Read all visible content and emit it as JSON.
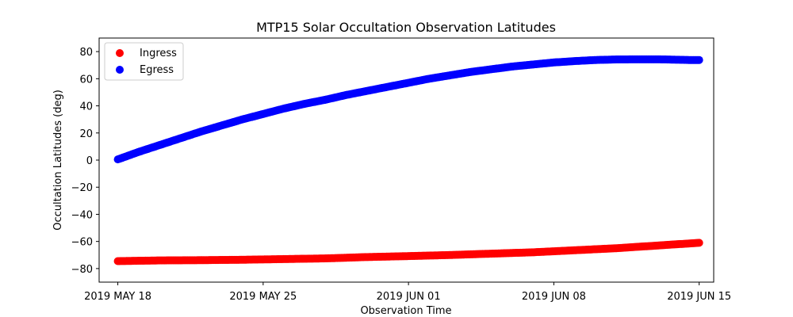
{
  "chart_data": {
    "type": "scatter",
    "title": "MTP15 Solar Occultation Observation Latitudes",
    "xlabel": "Observation Time",
    "ylabel": "Occultation Latitudes (deg)",
    "x_unit": "days since 2019 MAY 18",
    "xlim": [
      -0.9,
      28.7
    ],
    "ylim": [
      -90,
      90
    ],
    "grid": false,
    "legend_position": "top-left",
    "x_ticks": [
      {
        "value": 0,
        "label": "2019 MAY 18"
      },
      {
        "value": 7,
        "label": "2019 MAY 25"
      },
      {
        "value": 14,
        "label": "2019 JUN 01"
      },
      {
        "value": 21,
        "label": "2019 JUN 08"
      },
      {
        "value": 28,
        "label": "2019 JUN 15"
      }
    ],
    "y_ticks": [
      {
        "value": -80,
        "label": "−80"
      },
      {
        "value": -60,
        "label": "−60"
      },
      {
        "value": -40,
        "label": "−40"
      },
      {
        "value": -20,
        "label": "−20"
      },
      {
        "value": 0,
        "label": "0"
      },
      {
        "value": 20,
        "label": "20"
      },
      {
        "value": 40,
        "label": "40"
      },
      {
        "value": 60,
        "label": "60"
      },
      {
        "value": 80,
        "label": "80"
      }
    ],
    "series": [
      {
        "name": "Ingress",
        "color": "#ff0000",
        "x": [
          0,
          2,
          4,
          6,
          8,
          10,
          12,
          14,
          16,
          18,
          20,
          22,
          24,
          26,
          27,
          28
        ],
        "y": [
          -74.5,
          -74,
          -73.8,
          -73.5,
          -73,
          -72.5,
          -71.5,
          -70.8,
          -70,
          -69,
          -68,
          -66.5,
          -65,
          -63,
          -62,
          -61
        ]
      },
      {
        "name": "Egress",
        "color": "#0000ff",
        "x": [
          0,
          1,
          2,
          3,
          4,
          5,
          6,
          7,
          8,
          9,
          10,
          11,
          12,
          13,
          14,
          15,
          16,
          17,
          18,
          19,
          20,
          21,
          22,
          23,
          24,
          25,
          26,
          27,
          27.5,
          28
        ],
        "y": [
          0.5,
          6,
          11,
          16,
          21,
          25.5,
          30,
          34,
          38,
          41.5,
          44.5,
          48,
          51,
          54,
          57,
          60,
          62.5,
          65,
          67,
          69,
          70.5,
          72,
          73,
          73.8,
          74.2,
          74.3,
          74.3,
          74,
          73.8,
          73.8
        ]
      }
    ]
  }
}
